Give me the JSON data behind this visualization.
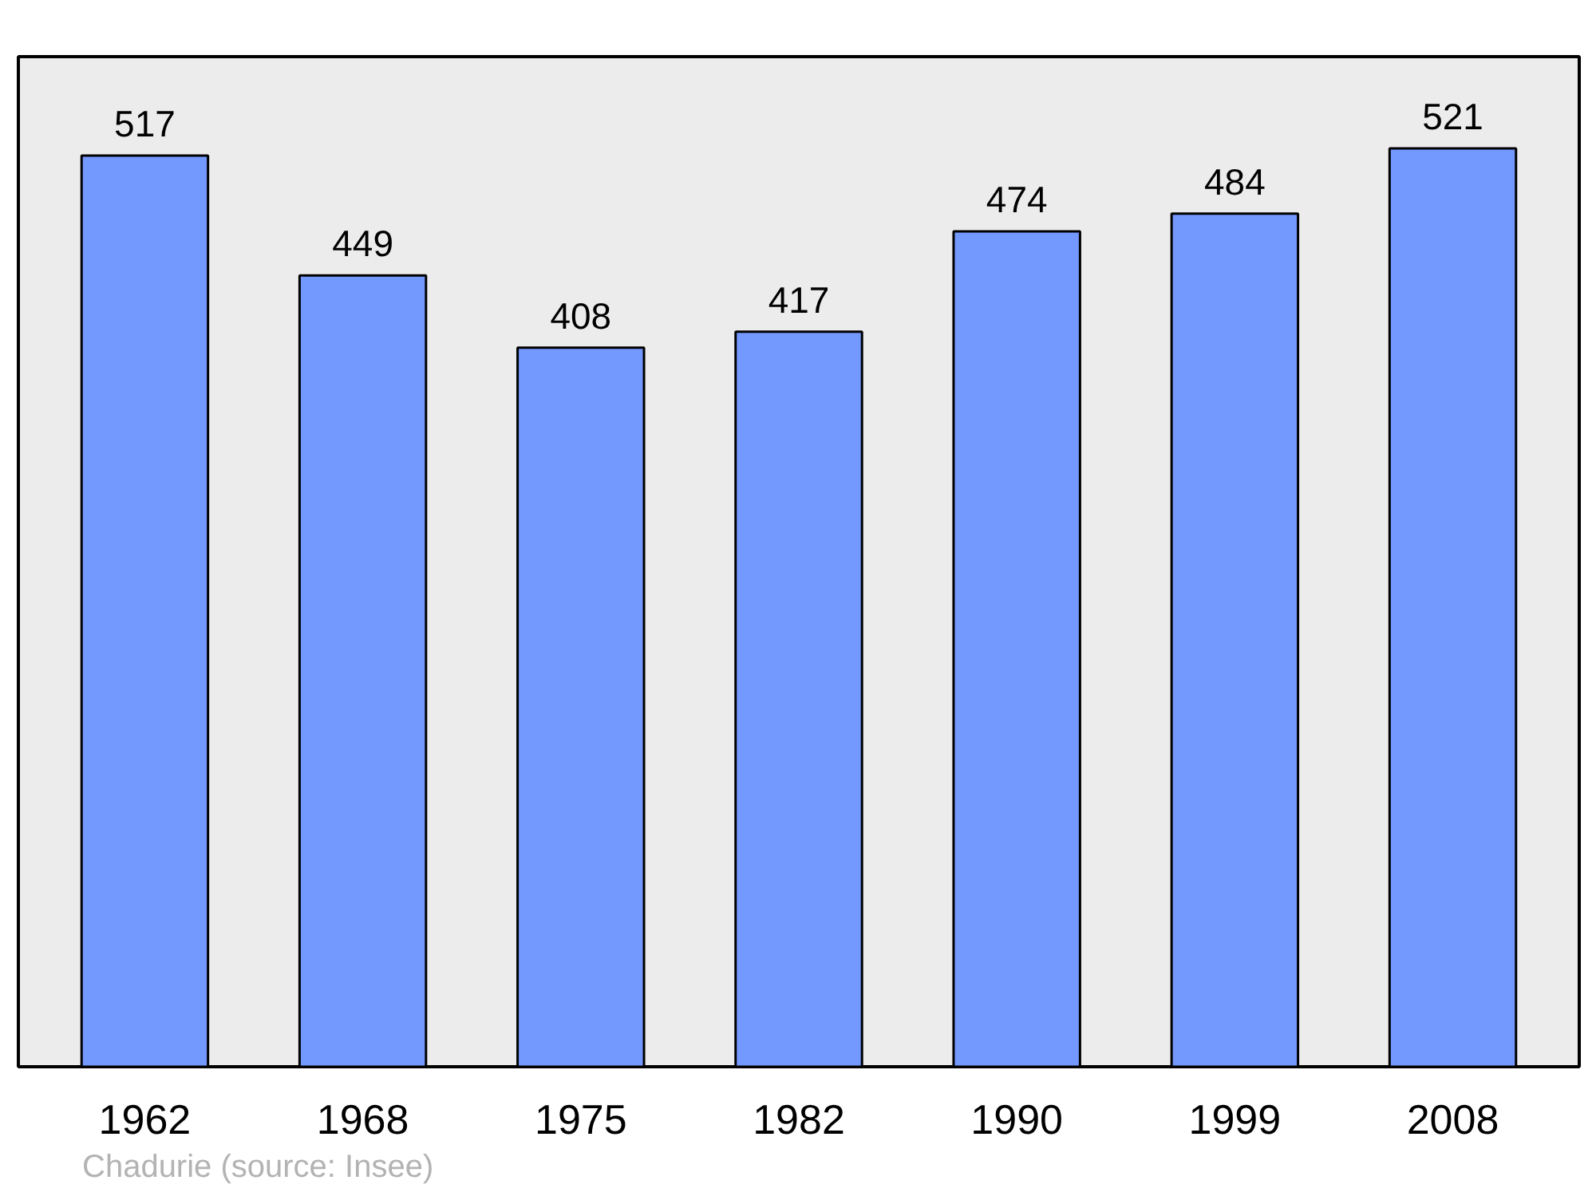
{
  "chart_data": {
    "type": "bar",
    "categories": [
      "1962",
      "1968",
      "1975",
      "1982",
      "1990",
      "1999",
      "2008"
    ],
    "values": [
      517,
      449,
      408,
      417,
      474,
      484,
      521
    ],
    "color": "#7399ff",
    "data_labels": true,
    "grid": false,
    "tick_labels": "x",
    "annotations": [
      "Chadurie    (source: Insee)"
    ]
  }
}
